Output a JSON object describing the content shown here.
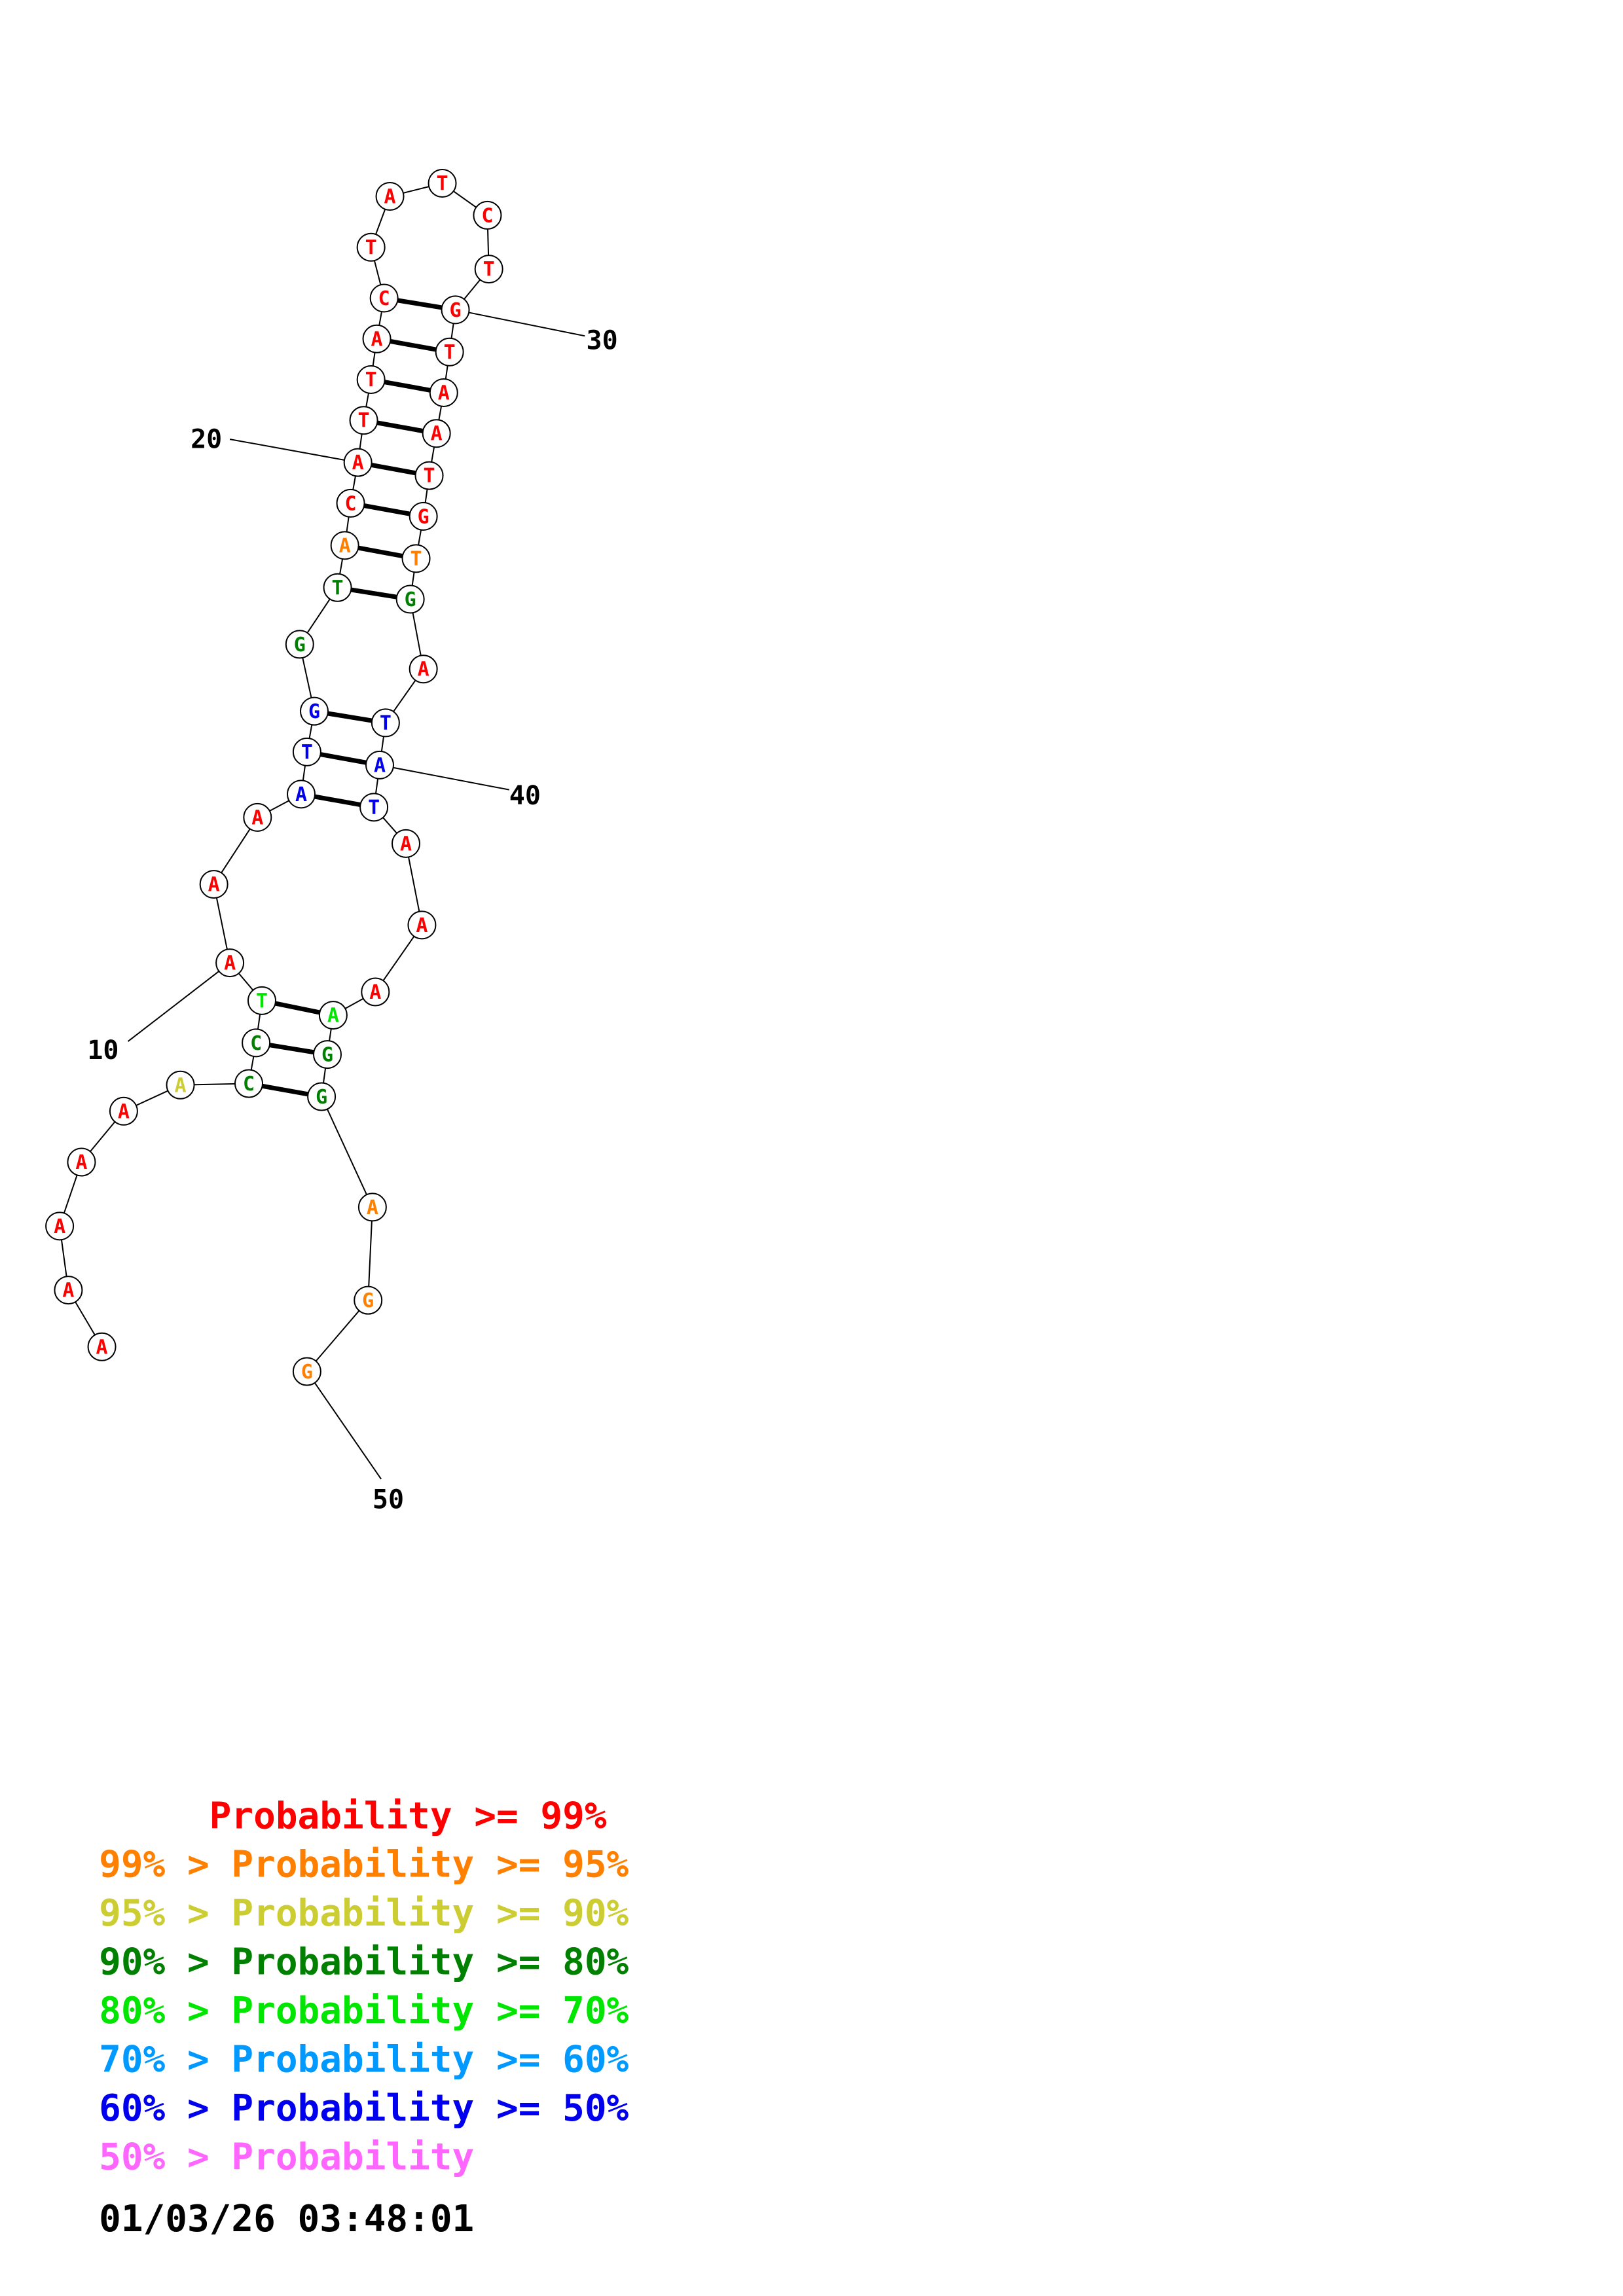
{
  "colors": {
    "p99": "#ff0000",
    "p95": "#ff8000",
    "p90": "#cccc33",
    "p80": "#008000",
    "p70": "#00e600",
    "p60": "#0099ff",
    "p50": "#0000ee",
    "plt50": "#ff66ff"
  },
  "nucleotides": [
    {
      "n": 1,
      "b": "A",
      "c": "p99"
    },
    {
      "n": 2,
      "b": "A",
      "c": "p99"
    },
    {
      "n": 3,
      "b": "A",
      "c": "p99"
    },
    {
      "n": 4,
      "b": "A",
      "c": "p99"
    },
    {
      "n": 5,
      "b": "A",
      "c": "p99"
    },
    {
      "n": 6,
      "b": "A",
      "c": "p90"
    },
    {
      "n": 7,
      "b": "C",
      "c": "p80"
    },
    {
      "n": 8,
      "b": "C",
      "c": "p80"
    },
    {
      "n": 9,
      "b": "T",
      "c": "p70"
    },
    {
      "n": 10,
      "b": "A",
      "c": "p99"
    },
    {
      "n": 11,
      "b": "A",
      "c": "p99"
    },
    {
      "n": 12,
      "b": "A",
      "c": "p99"
    },
    {
      "n": 13,
      "b": "A",
      "c": "p50"
    },
    {
      "n": 14,
      "b": "T",
      "c": "p50"
    },
    {
      "n": 15,
      "b": "G",
      "c": "p50"
    },
    {
      "n": 16,
      "b": "G",
      "c": "p80"
    },
    {
      "n": 17,
      "b": "T",
      "c": "p80"
    },
    {
      "n": 18,
      "b": "A",
      "c": "p95"
    },
    {
      "n": 19,
      "b": "C",
      "c": "p99"
    },
    {
      "n": 20,
      "b": "A",
      "c": "p99"
    },
    {
      "n": 21,
      "b": "T",
      "c": "p99"
    },
    {
      "n": 22,
      "b": "T",
      "c": "p99"
    },
    {
      "n": 23,
      "b": "A",
      "c": "p99"
    },
    {
      "n": 24,
      "b": "C",
      "c": "p99"
    },
    {
      "n": 25,
      "b": "T",
      "c": "p99"
    },
    {
      "n": 26,
      "b": "A",
      "c": "p99"
    },
    {
      "n": 27,
      "b": "T",
      "c": "p99"
    },
    {
      "n": 28,
      "b": "C",
      "c": "p99"
    },
    {
      "n": 29,
      "b": "T",
      "c": "p99"
    },
    {
      "n": 30,
      "b": "G",
      "c": "p99"
    },
    {
      "n": 31,
      "b": "T",
      "c": "p99"
    },
    {
      "n": 32,
      "b": "A",
      "c": "p99"
    },
    {
      "n": 33,
      "b": "A",
      "c": "p99"
    },
    {
      "n": 34,
      "b": "T",
      "c": "p99"
    },
    {
      "n": 35,
      "b": "G",
      "c": "p99"
    },
    {
      "n": 36,
      "b": "T",
      "c": "p95"
    },
    {
      "n": 37,
      "b": "G",
      "c": "p80"
    },
    {
      "n": 38,
      "b": "A",
      "c": "p99"
    },
    {
      "n": 39,
      "b": "T",
      "c": "p50"
    },
    {
      "n": 40,
      "b": "A",
      "c": "p50"
    },
    {
      "n": 41,
      "b": "T",
      "c": "p50"
    },
    {
      "n": 42,
      "b": "A",
      "c": "p99"
    },
    {
      "n": 43,
      "b": "A",
      "c": "p99"
    },
    {
      "n": 44,
      "b": "A",
      "c": "p99"
    },
    {
      "n": 45,
      "b": "A",
      "c": "p70"
    },
    {
      "n": 46,
      "b": "G",
      "c": "p80"
    },
    {
      "n": 47,
      "b": "G",
      "c": "p80"
    },
    {
      "n": 48,
      "b": "A",
      "c": "p95"
    },
    {
      "n": 49,
      "b": "G",
      "c": "p95"
    },
    {
      "n": 50,
      "b": "G",
      "c": "p95"
    }
  ],
  "pairs": [
    [
      7,
      47
    ],
    [
      8,
      46
    ],
    [
      9,
      45
    ],
    [
      13,
      41
    ],
    [
      14,
      40
    ],
    [
      15,
      39
    ],
    [
      17,
      37
    ],
    [
      18,
      36
    ],
    [
      19,
      35
    ],
    [
      20,
      34
    ],
    [
      21,
      33
    ],
    [
      22,
      32
    ],
    [
      23,
      31
    ],
    [
      24,
      30
    ]
  ],
  "position_labels": [
    {
      "n": 10,
      "text": "10"
    },
    {
      "n": 20,
      "text": "20"
    },
    {
      "n": 30,
      "text": "30"
    },
    {
      "n": 40,
      "text": "40"
    },
    {
      "n": 50,
      "text": "50"
    }
  ],
  "legend": [
    {
      "c": "p99",
      "text": "     Probability >= 99%"
    },
    {
      "c": "p95",
      "text": "99% > Probability >= 95%"
    },
    {
      "c": "p90",
      "text": "95% > Probability >= 90%"
    },
    {
      "c": "p80",
      "text": "90% > Probability >= 80%"
    },
    {
      "c": "p70",
      "text": "80% > Probability >= 70%"
    },
    {
      "c": "p60",
      "text": "70% > Probability >= 60%"
    },
    {
      "c": "p50",
      "text": "60% > Probability >= 50%"
    },
    {
      "c": "plt50",
      "text": "50% > Probability"
    }
  ],
  "timestamp": "01/03/26 03:48:01"
}
